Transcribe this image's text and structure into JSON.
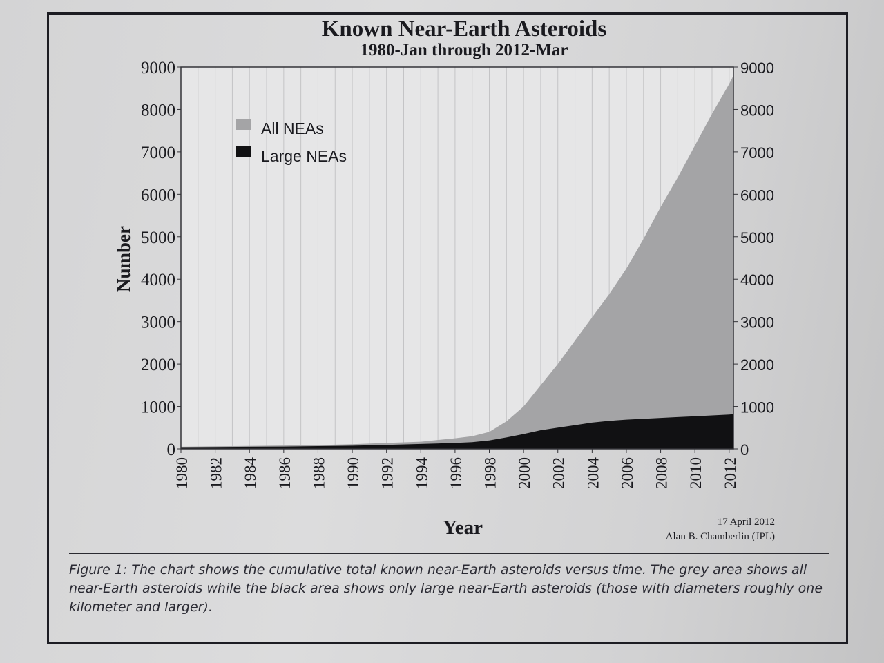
{
  "figure": {
    "caption": "Figure 1: The chart shows the cumulative total known near-Earth asteroids versus time. The grey area shows all near-Earth asteroids while the black area shows only large near-Earth asteroids (those with diameters roughly one kilometer and larger).",
    "credit_date": "17 April 2012",
    "credit_author": "Alan B. Chamberlin (JPL)"
  },
  "chart_data": {
    "type": "area",
    "title": "Known Near-Earth Asteroids",
    "subtitle": "1980-Jan through 2012-Mar",
    "xlabel": "Year",
    "ylabel": "Number",
    "xlim": [
      1980,
      2012.25
    ],
    "ylim": [
      0,
      9000
    ],
    "x_ticks": [
      "1980",
      "1982",
      "1984",
      "1986",
      "1988",
      "1990",
      "1992",
      "1994",
      "1996",
      "1998",
      "2000",
      "2002",
      "2004",
      "2006",
      "2008",
      "2010",
      "2012"
    ],
    "y_ticks": [
      "0",
      "1000",
      "2000",
      "3000",
      "4000",
      "5000",
      "6000",
      "7000",
      "8000",
      "9000"
    ],
    "grid": "vertical",
    "legend_position": "top-left",
    "colors": {
      "all": "#a4a4a6",
      "large": "#111113",
      "plot_bg": "#e6e6e7"
    },
    "series": [
      {
        "name": "All NEAs",
        "x": [
          1980,
          1982,
          1984,
          1986,
          1988,
          1990,
          1992,
          1994,
          1996,
          1997,
          1998,
          1999,
          2000,
          2001,
          2002,
          2003,
          2004,
          2005,
          2006,
          2007,
          2008,
          2009,
          2010,
          2011,
          2012,
          2012.25
        ],
        "y": [
          50,
          60,
          70,
          80,
          90,
          110,
          140,
          170,
          250,
          300,
          400,
          650,
          1000,
          1500,
          2000,
          2550,
          3100,
          3650,
          4250,
          4950,
          5700,
          6400,
          7150,
          7900,
          8600,
          8800
        ]
      },
      {
        "name": "Large NEAs",
        "x": [
          1980,
          1982,
          1984,
          1986,
          1988,
          1990,
          1992,
          1994,
          1996,
          1997,
          1998,
          1999,
          2000,
          2001,
          2002,
          2003,
          2004,
          2005,
          2006,
          2007,
          2008,
          2009,
          2010,
          2011,
          2012,
          2012.25
        ],
        "y": [
          40,
          45,
          50,
          55,
          65,
          75,
          95,
          115,
          140,
          160,
          200,
          270,
          350,
          440,
          500,
          560,
          620,
          660,
          690,
          710,
          730,
          750,
          770,
          790,
          810,
          820
        ]
      }
    ]
  }
}
